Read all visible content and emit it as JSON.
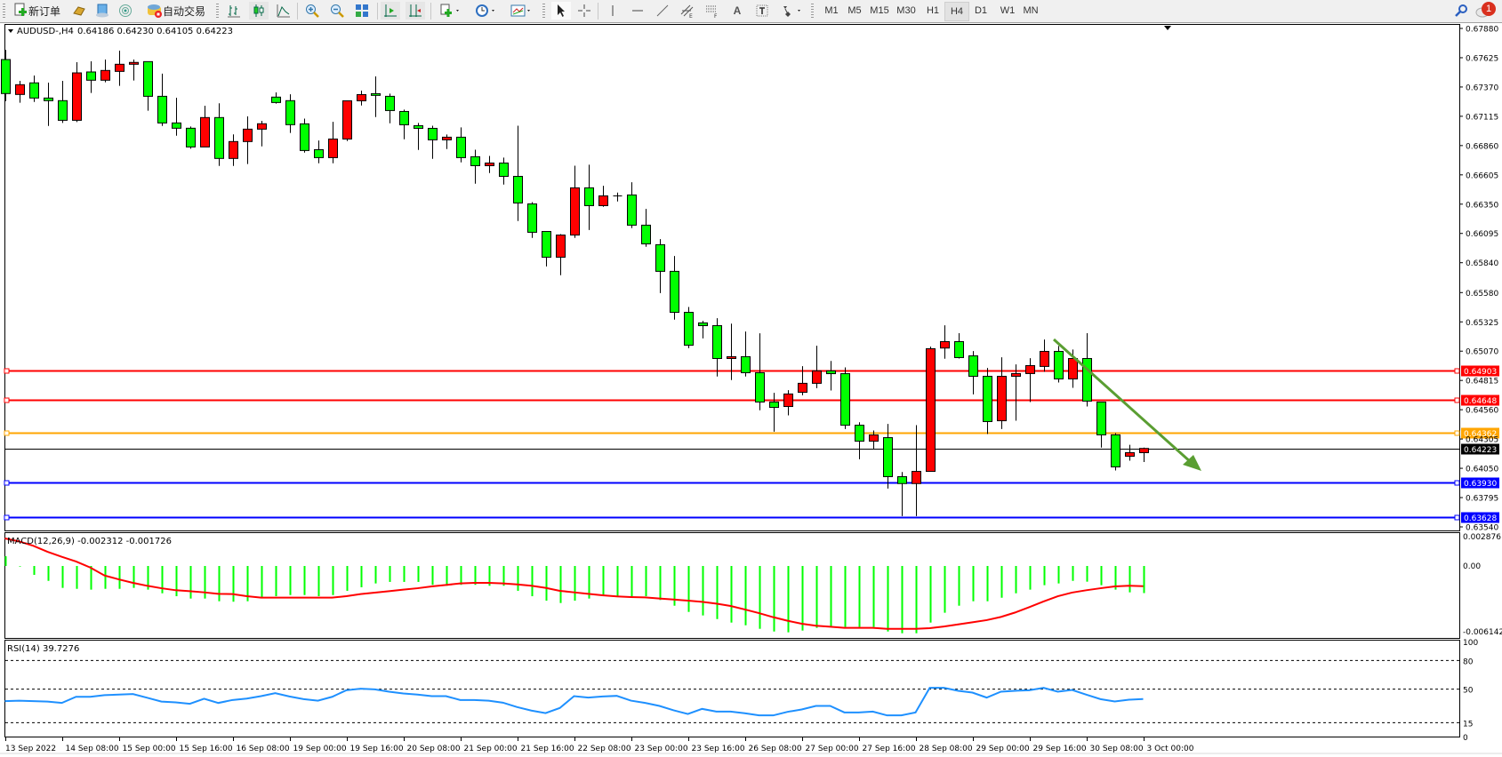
{
  "toolbar": {
    "new_order_label": "新订单",
    "auto_trading_label": "自动交易",
    "timeframes": [
      "M1",
      "M5",
      "M15",
      "M30",
      "H1",
      "H4",
      "D1",
      "W1",
      "MN"
    ],
    "selected_timeframe": "H4",
    "notification_count": "1"
  },
  "chart_header": {
    "symbol": "AUDUSD-,H4",
    "ohlc": "0.64186 0.64230 0.64105 0.64223"
  },
  "colors": {
    "bull_candle": "#ff0000",
    "bear_candle": "#00ff00",
    "macd_histogram": "#00ff00",
    "macd_signal": "#ff0000",
    "rsi_line": "#1e90ff",
    "trend_arrow": "#5a9e32"
  },
  "price_axis": {
    "ticks": [
      "0.67880",
      "0.67625",
      "0.67370",
      "0.67115",
      "0.66860",
      "0.66605",
      "0.66350",
      "0.66095",
      "0.65840",
      "0.65580",
      "0.65325",
      "0.65070",
      "0.64815",
      "0.64560",
      "0.64305",
      "0.64050",
      "0.63795",
      "0.63540"
    ]
  },
  "horizontal_lines": [
    {
      "price": 0.64903,
      "label": "0.64903",
      "color": "#ff0000"
    },
    {
      "price": 0.64648,
      "label": "0.64648",
      "color": "#ff0000"
    },
    {
      "price": 0.64362,
      "label": "0.64362",
      "color": "#ffa500"
    },
    {
      "price": 0.6393,
      "label": "0.63930",
      "color": "#0000ff"
    },
    {
      "price": 0.63628,
      "label": "0.63628",
      "color": "#0000ff"
    }
  ],
  "current_price": {
    "price": 0.64223,
    "label": "0.64223",
    "color": "#000000"
  },
  "macd": {
    "title": "MACD(12,26,9) -0.002312 -0.001726",
    "axis_ticks": [
      "0.002876",
      "0.00",
      "-0.006142"
    ],
    "range": [
      -0.006142,
      0.002876
    ]
  },
  "rsi": {
    "title": "RSI(14) 39.7276",
    "axis_ticks": [
      "100",
      "80",
      "50",
      "15",
      "0"
    ],
    "levels": [
      80,
      50,
      15
    ]
  },
  "time_axis": {
    "labels": [
      "13 Sep 2022",
      "14 Sep 08:00",
      "15 Sep 00:00",
      "15 Sep 16:00",
      "16 Sep 08:00",
      "19 Sep 00:00",
      "19 Sep 16:00",
      "20 Sep 08:00",
      "21 Sep 00:00",
      "21 Sep 16:00",
      "22 Sep 08:00",
      "23 Sep 00:00",
      "23 Sep 16:00",
      "26 Sep 08:00",
      "27 Sep 00:00",
      "27 Sep 16:00",
      "28 Sep 08:00",
      "29 Sep 00:00",
      "29 Sep 16:00",
      "30 Sep 08:00",
      "3 Oct 00:00"
    ]
  },
  "chart_data": {
    "type": "candlestick",
    "symbol": "AUDUSD-",
    "timeframe": "H4",
    "ylim": [
      0.6354,
      0.6788
    ],
    "ohlc": [
      [
        0.67609,
        0.67692,
        0.67248,
        0.67313
      ],
      [
        0.67305,
        0.67424,
        0.67233,
        0.6739
      ],
      [
        0.67406,
        0.6747,
        0.6724,
        0.67274
      ],
      [
        0.67274,
        0.67408,
        0.67031,
        0.67251
      ],
      [
        0.67251,
        0.67424,
        0.67057,
        0.6708
      ],
      [
        0.6708,
        0.67586,
        0.67065,
        0.67493
      ],
      [
        0.67501,
        0.67594,
        0.67318,
        0.67429
      ],
      [
        0.67429,
        0.67609,
        0.67411,
        0.67514
      ],
      [
        0.67506,
        0.67687,
        0.6738,
        0.67568
      ],
      [
        0.67568,
        0.67609,
        0.67426,
        0.67584
      ],
      [
        0.67591,
        0.67591,
        0.67163,
        0.67289
      ],
      [
        0.67289,
        0.67486,
        0.67031,
        0.67057
      ],
      [
        0.67057,
        0.67277,
        0.66946,
        0.67011
      ],
      [
        0.67011,
        0.67026,
        0.66833,
        0.66848
      ],
      [
        0.66848,
        0.67207,
        0.66848,
        0.67104
      ],
      [
        0.67104,
        0.67228,
        0.66683,
        0.66748
      ],
      [
        0.66748,
        0.66957,
        0.66683,
        0.66895
      ],
      [
        0.66895,
        0.67114,
        0.66699,
        0.67003
      ],
      [
        0.67003,
        0.67075,
        0.66853,
        0.6705
      ],
      [
        0.67282,
        0.67323,
        0.67225,
        0.67235
      ],
      [
        0.67251,
        0.67307,
        0.6697,
        0.67042
      ],
      [
        0.67049,
        0.67095,
        0.66799,
        0.66817
      ],
      [
        0.66824,
        0.66904,
        0.66706,
        0.66755
      ],
      [
        0.66755,
        0.67067,
        0.66706,
        0.66917
      ],
      [
        0.66917,
        0.6725,
        0.66899,
        0.6725
      ],
      [
        0.6725,
        0.67338,
        0.67209,
        0.67304
      ],
      [
        0.67312,
        0.67462,
        0.67108,
        0.67297
      ],
      [
        0.67289,
        0.67312,
        0.67054,
        0.67165
      ],
      [
        0.67157,
        0.67173,
        0.66915,
        0.67041
      ],
      [
        0.67033,
        0.67057,
        0.66822,
        0.6701
      ],
      [
        0.6701,
        0.67033,
        0.66745,
        0.6691
      ],
      [
        0.6691,
        0.66956,
        0.6683,
        0.66933
      ],
      [
        0.66933,
        0.67018,
        0.66714,
        0.66755
      ],
      [
        0.66763,
        0.66824,
        0.66528,
        0.66685
      ],
      [
        0.66685,
        0.6677,
        0.66621,
        0.66708
      ],
      [
        0.66708,
        0.66755,
        0.6652,
        0.66592
      ],
      [
        0.66592,
        0.67033,
        0.66203,
        0.6636
      ],
      [
        0.66352,
        0.66368,
        0.66056,
        0.66105
      ],
      [
        0.66112,
        0.66112,
        0.65808,
        0.65888
      ],
      [
        0.65888,
        0.66089,
        0.65731,
        0.66081
      ],
      [
        0.66081,
        0.66685,
        0.66056,
        0.66492
      ],
      [
        0.66492,
        0.66693,
        0.66125,
        0.66337
      ],
      [
        0.66337,
        0.6651,
        0.66327,
        0.66422
      ],
      [
        0.66422,
        0.66451,
        0.66373,
        0.66422
      ],
      [
        0.6643,
        0.66541,
        0.66141,
        0.66167
      ],
      [
        0.66167,
        0.66309,
        0.65979,
        0.66004
      ],
      [
        0.65997,
        0.66046,
        0.65576,
        0.65765
      ],
      [
        0.65765,
        0.65899,
        0.65344,
        0.65408
      ],
      [
        0.65408,
        0.65455,
        0.65096,
        0.65122
      ],
      [
        0.65316,
        0.65334,
        0.65181,
        0.65292
      ],
      [
        0.65292,
        0.65357,
        0.64849,
        0.65006
      ],
      [
        0.65006,
        0.6531,
        0.64818,
        0.65022
      ],
      [
        0.65022,
        0.65241,
        0.64849,
        0.64882
      ],
      [
        0.64882,
        0.65225,
        0.64555,
        0.64627
      ],
      [
        0.64627,
        0.64707,
        0.64369,
        0.6458
      ],
      [
        0.64588,
        0.6473,
        0.64511,
        0.64697
      ],
      [
        0.64712,
        0.64939,
        0.64686,
        0.6479
      ],
      [
        0.6479,
        0.65117,
        0.64748,
        0.64898
      ],
      [
        0.64898,
        0.64985,
        0.64727,
        0.64874
      ],
      [
        0.64874,
        0.64929,
        0.64392,
        0.64425
      ],
      [
        0.64425,
        0.64451,
        0.64129,
        0.64286
      ],
      [
        0.64286,
        0.64379,
        0.64219,
        0.6434
      ],
      [
        0.64317,
        0.64436,
        0.63874,
        0.63977
      ],
      [
        0.63977,
        0.64018,
        0.63634,
        0.63917
      ],
      [
        0.63917,
        0.64426,
        0.63634,
        0.64023
      ],
      [
        0.64023,
        0.65109,
        0.64023,
        0.65091
      ],
      [
        0.65097,
        0.65295,
        0.65004,
        0.65153
      ],
      [
        0.65153,
        0.65226,
        0.65006,
        0.65014
      ],
      [
        0.65029,
        0.65071,
        0.64694,
        0.64851
      ],
      [
        0.64851,
        0.64924,
        0.64348,
        0.64457
      ],
      [
        0.64464,
        0.65017,
        0.64392,
        0.64851
      ],
      [
        0.64851,
        0.64955,
        0.64464,
        0.64875
      ],
      [
        0.64875,
        0.65009,
        0.64627,
        0.64944
      ],
      [
        0.64937,
        0.65171,
        0.6489,
        0.65068
      ],
      [
        0.65068,
        0.65115,
        0.64797,
        0.64828
      ],
      [
        0.64828,
        0.65084,
        0.64751,
        0.65006
      ],
      [
        0.65006,
        0.65226,
        0.64588,
        0.64635
      ],
      [
        0.64627,
        0.64627,
        0.6423,
        0.64341
      ],
      [
        0.64341,
        0.64356,
        0.64031,
        0.64062
      ],
      [
        0.64155,
        0.64255,
        0.64116,
        0.64186
      ],
      [
        0.64186,
        0.6423,
        0.64105,
        0.64223
      ]
    ],
    "macd_histogram": [
      0.00083,
      -5e-05,
      -0.00076,
      -0.00127,
      -0.00187,
      -0.00195,
      -0.00202,
      -0.00195,
      -0.00195,
      -0.00187,
      -0.00202,
      -0.00233,
      -0.00258,
      -0.00278,
      -0.00278,
      -0.00301,
      -0.00305,
      -0.00301,
      -0.00271,
      -0.00258,
      -0.00248,
      -0.00248,
      -0.00258,
      -0.00248,
      -0.00212,
      -0.00182,
      -0.00149,
      -0.00136,
      -0.00136,
      -0.00136,
      -0.00161,
      -0.00169,
      -0.00161,
      -0.00161,
      -0.00169,
      -0.00169,
      -0.00212,
      -0.00258,
      -0.00296,
      -0.00316,
      -0.00296,
      -0.00278,
      -0.00258,
      -0.00258,
      -0.00258,
      -0.00258,
      -0.0029,
      -0.00339,
      -0.00392,
      -0.00422,
      -0.00453,
      -0.00483,
      -0.00506,
      -0.00536,
      -0.00559,
      -0.00566,
      -0.00551,
      -0.00528,
      -0.00521,
      -0.00521,
      -0.00521,
      -0.00521,
      -0.00559,
      -0.00574,
      -0.00574,
      -0.00483,
      -0.00399,
      -0.00339,
      -0.00301,
      -0.00301,
      -0.00271,
      -0.00233,
      -0.00202,
      -0.00164,
      -0.00149,
      -0.00127,
      -0.00134,
      -0.00164,
      -0.00202,
      -0.00225,
      -0.002312
    ],
    "macd_signal": [
      0.00235,
      0.0021,
      0.00172,
      0.00121,
      0.00078,
      0.00038,
      -0.00013,
      -0.00081,
      -0.00114,
      -0.00144,
      -0.00169,
      -0.0019,
      -0.00207,
      -0.00215,
      -0.00225,
      -0.00238,
      -0.0024,
      -0.00258,
      -0.0027,
      -0.0027,
      -0.0027,
      -0.0027,
      -0.0027,
      -0.0027,
      -0.00258,
      -0.0024,
      -0.00227,
      -0.00215,
      -0.00202,
      -0.0019,
      -0.00174,
      -0.00162,
      -0.00149,
      -0.00144,
      -0.00144,
      -0.00149,
      -0.00157,
      -0.00169,
      -0.00187,
      -0.00212,
      -0.00225,
      -0.00238,
      -0.0025,
      -0.0026,
      -0.00265,
      -0.00268,
      -0.00278,
      -0.00286,
      -0.00296,
      -0.00306,
      -0.00321,
      -0.00341,
      -0.00371,
      -0.00402,
      -0.00437,
      -0.00467,
      -0.00493,
      -0.0051,
      -0.00518,
      -0.00528,
      -0.00528,
      -0.00528,
      -0.00536,
      -0.00536,
      -0.00536,
      -0.00531,
      -0.00516,
      -0.00498,
      -0.0048,
      -0.00462,
      -0.00435,
      -0.00397,
      -0.00351,
      -0.00303,
      -0.00258,
      -0.00227,
      -0.00207,
      -0.0019,
      -0.00174,
      -0.00169,
      -0.001726
    ],
    "rsi": [
      37.5,
      38,
      37.5,
      37,
      35.6,
      42,
      42,
      43.7,
      44.3,
      44.9,
      41,
      37,
      36.2,
      34.7,
      40,
      35.6,
      38.7,
      40.2,
      42.7,
      45.8,
      42.4,
      39.6,
      38,
      42,
      48.9,
      50.5,
      49.8,
      47.4,
      45.5,
      44.3,
      42.7,
      42.7,
      38.7,
      38.7,
      38,
      35.9,
      31.3,
      27.6,
      25,
      30.3,
      42.7,
      41.2,
      42.4,
      43,
      38,
      35.6,
      32.5,
      27.9,
      24.1,
      29.4,
      26.6,
      26.6,
      24.8,
      22.6,
      22.6,
      26.3,
      28.8,
      32.5,
      32.5,
      25.7,
      25.7,
      26.6,
      22.6,
      22.6,
      25.7,
      51.4,
      51.4,
      48.3,
      46.4,
      41.2,
      47.4,
      48.3,
      48.9,
      51.4,
      47.4,
      49.2,
      44.3,
      39.6,
      37.2,
      39,
      39.7276
    ]
  }
}
